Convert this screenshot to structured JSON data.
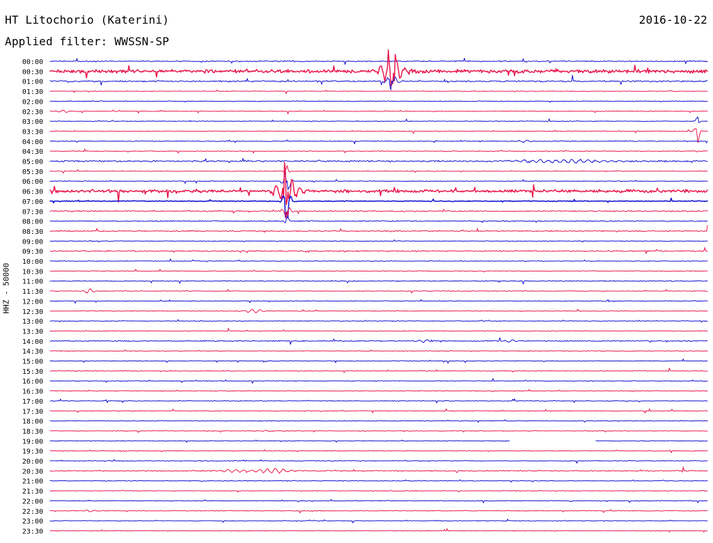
{
  "header": {
    "title": "HT Litochorio (Katerini)",
    "date": "2016-10-22",
    "filter": "Applied filter: WWSSN-SP",
    "side_label": "HHZ - 50000"
  },
  "chart_data": {
    "type": "line",
    "title": "HT Litochorio (Katerini)",
    "subtitle": "Applied filter: WWSSN-SP",
    "date": "2016-10-22",
    "ylabel": "HHZ - 50000",
    "xlabel": "",
    "y_tick_labels": [
      "00:00",
      "00:30",
      "01:00",
      "01:30",
      "02:00",
      "02:30",
      "03:00",
      "03:30",
      "04:00",
      "04:30",
      "05:00",
      "05:30",
      "06:00",
      "06:30",
      "07:00",
      "07:30",
      "08:00",
      "08:30",
      "09:00",
      "09:30",
      "10:00",
      "10:30",
      "11:00",
      "11:30",
      "12:00",
      "12:30",
      "13:00",
      "13:30",
      "14:00",
      "14:30",
      "15:00",
      "15:30",
      "16:00",
      "16:30",
      "17:00",
      "17:30",
      "18:00",
      "18:30",
      "19:00",
      "19:30",
      "20:00",
      "20:30",
      "21:00",
      "21:30",
      "22:00",
      "22:30",
      "23:00",
      "23:30"
    ],
    "trace_colors": [
      "#1010d0",
      "#e8184e"
    ],
    "series": [
      {
        "label": "00:00",
        "level": 0.12,
        "events": []
      },
      {
        "label": "00:30",
        "level": 0.38,
        "events": [
          {
            "x": 0.52,
            "amp": 1.9,
            "dur": 0.05,
            "spike": 1
          }
        ]
      },
      {
        "label": "01:00",
        "level": 0.16,
        "events": [
          {
            "x": 0.52,
            "amp": 0.7,
            "dur": 0.03,
            "spike": 1
          }
        ]
      },
      {
        "label": "01:30",
        "level": 0.08,
        "events": []
      },
      {
        "label": "02:00",
        "level": 0.08,
        "events": []
      },
      {
        "label": "02:30",
        "level": 0.08,
        "events": [
          {
            "x": 0.02,
            "amp": 0.25,
            "dur": 0.02,
            "spike": 0
          }
        ]
      },
      {
        "label": "03:00",
        "level": 0.08,
        "events": [
          {
            "x": 0.985,
            "amp": 0.5,
            "dur": 0.01,
            "spike": 1
          }
        ]
      },
      {
        "label": "03:30",
        "level": 0.08,
        "events": [
          {
            "x": 0.985,
            "amp": 1.2,
            "dur": 0.012,
            "spike": 1
          }
        ]
      },
      {
        "label": "04:00",
        "level": 0.1,
        "events": [
          {
            "x": 0.72,
            "amp": 0.18,
            "dur": 0.03,
            "spike": 0
          }
        ]
      },
      {
        "label": "04:30",
        "level": 0.1,
        "events": []
      },
      {
        "label": "05:00",
        "level": 0.18,
        "events": [
          {
            "x": 0.78,
            "amp": 0.24,
            "dur": 0.22,
            "spike": 0
          }
        ]
      },
      {
        "label": "05:30",
        "level": 0.08,
        "events": [
          {
            "x": 0.36,
            "amp": 0.6,
            "dur": 0.01,
            "spike": 1
          }
        ]
      },
      {
        "label": "06:00",
        "level": 0.08,
        "events": [
          {
            "x": 0.36,
            "amp": 1.4,
            "dur": 0.018,
            "spike": 1
          }
        ]
      },
      {
        "label": "06:30",
        "level": 0.34,
        "events": [
          {
            "x": 0.36,
            "amp": 2.0,
            "dur": 0.05,
            "spike": 1
          }
        ]
      },
      {
        "label": "07:00",
        "level": 0.1,
        "events": [
          {
            "x": 0.36,
            "amp": 1.7,
            "dur": 0.02,
            "spike": 1
          }
        ]
      },
      {
        "label": "07:30",
        "level": 0.14,
        "events": [
          {
            "x": 0.36,
            "amp": 0.7,
            "dur": 0.02,
            "spike": 1
          }
        ]
      },
      {
        "label": "08:00",
        "level": 0.12,
        "events": [
          {
            "x": 0.36,
            "amp": 0.6,
            "dur": 0.01,
            "spike": 1
          }
        ]
      },
      {
        "label": "08:30",
        "level": 0.14,
        "events": []
      },
      {
        "label": "09:00",
        "level": 0.08,
        "events": []
      },
      {
        "label": "09:30",
        "level": 0.14,
        "events": []
      },
      {
        "label": "10:00",
        "level": 0.08,
        "events": []
      },
      {
        "label": "10:30",
        "level": 0.08,
        "events": []
      },
      {
        "label": "11:00",
        "level": 0.1,
        "events": []
      },
      {
        "label": "11:30",
        "level": 0.08,
        "events": [
          {
            "x": 0.06,
            "amp": 0.5,
            "dur": 0.02,
            "spike": 0
          }
        ]
      },
      {
        "label": "12:00",
        "level": 0.08,
        "events": [
          {
            "x": 0.85,
            "amp": 0.2,
            "dur": 0.01,
            "spike": 1
          }
        ]
      },
      {
        "label": "12:30",
        "level": 0.08,
        "events": [
          {
            "x": 0.31,
            "amp": 0.28,
            "dur": 0.04,
            "spike": 0
          }
        ]
      },
      {
        "label": "13:00",
        "level": 0.08,
        "events": []
      },
      {
        "label": "13:30",
        "level": 0.08,
        "events": []
      },
      {
        "label": "14:00",
        "level": 0.12,
        "events": [
          {
            "x": 0.57,
            "amp": 0.2,
            "dur": 0.04,
            "spike": 0
          },
          {
            "x": 0.7,
            "amp": 0.16,
            "dur": 0.03,
            "spike": 0
          }
        ]
      },
      {
        "label": "14:30",
        "level": 0.08,
        "events": []
      },
      {
        "label": "15:00",
        "level": 0.08,
        "events": []
      },
      {
        "label": "15:30",
        "level": 0.08,
        "events": []
      },
      {
        "label": "16:00",
        "level": 0.08,
        "events": []
      },
      {
        "label": "16:30",
        "level": 0.08,
        "events": []
      },
      {
        "label": "17:00",
        "level": 0.08,
        "events": []
      },
      {
        "label": "17:30",
        "level": 0.08,
        "events": []
      },
      {
        "label": "18:00",
        "level": 0.08,
        "events": []
      },
      {
        "label": "18:30",
        "level": 0.08,
        "events": [
          {
            "x": 0.33,
            "amp": 0.12,
            "dur": 0.02,
            "spike": 0
          }
        ]
      },
      {
        "label": "19:00",
        "level": 0.08,
        "gaps": [
          [
            0.7,
            0.83
          ]
        ],
        "events": []
      },
      {
        "label": "19:30",
        "level": 0.08,
        "events": []
      },
      {
        "label": "20:00",
        "level": 0.08,
        "events": []
      },
      {
        "label": "20:30",
        "level": 0.12,
        "events": [
          {
            "x": 0.28,
            "amp": 0.24,
            "dur": 0.05,
            "spike": 0
          },
          {
            "x": 0.34,
            "amp": 0.38,
            "dur": 0.07,
            "spike": 0
          }
        ]
      },
      {
        "label": "21:00",
        "level": 0.08,
        "events": []
      },
      {
        "label": "21:30",
        "level": 0.08,
        "events": []
      },
      {
        "label": "22:00",
        "level": 0.08,
        "events": []
      },
      {
        "label": "22:30",
        "level": 0.08,
        "events": [
          {
            "x": 0.06,
            "amp": 0.15,
            "dur": 0.02,
            "spike": 0
          }
        ]
      },
      {
        "label": "23:00",
        "level": 0.08,
        "events": []
      },
      {
        "label": "23:30",
        "level": 0.08,
        "events": []
      }
    ]
  }
}
